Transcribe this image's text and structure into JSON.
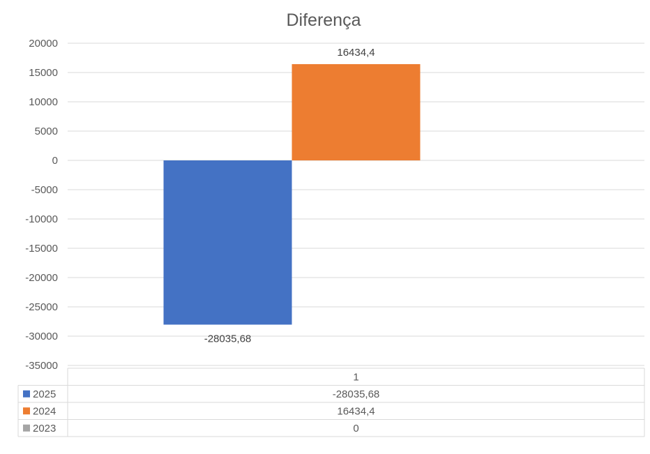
{
  "chart_data": {
    "type": "bar",
    "title": "Diferença",
    "categories": [
      "1"
    ],
    "series": [
      {
        "name": "2025",
        "values": [
          -28035.68
        ],
        "value_label": "-28035,68",
        "color": "#4472C4"
      },
      {
        "name": "2024",
        "values": [
          16434.4
        ],
        "value_label": "16434,4",
        "color": "#ED7D31"
      },
      {
        "name": "2023",
        "values": [
          0
        ],
        "value_label": "0",
        "color": "#A5A5A5"
      }
    ],
    "ylim": [
      -35000,
      20000
    ],
    "yticks": [
      20000,
      15000,
      10000,
      5000,
      0,
      -5000,
      -10000,
      -15000,
      -20000,
      -25000,
      -30000,
      -35000
    ],
    "ytick_labels": [
      "20000",
      "15000",
      "10000",
      "5000",
      "0",
      "-5000",
      "-10000",
      "-15000",
      "-20000",
      "-25000",
      "-30000",
      "-35000"
    ],
    "grid": true,
    "legend": "data-table",
    "data_table": true,
    "xlabel": "",
    "ylabel": ""
  },
  "colors": {
    "grid": "#D9D9D9",
    "text": "#595959",
    "background": "#FFFFFF"
  }
}
